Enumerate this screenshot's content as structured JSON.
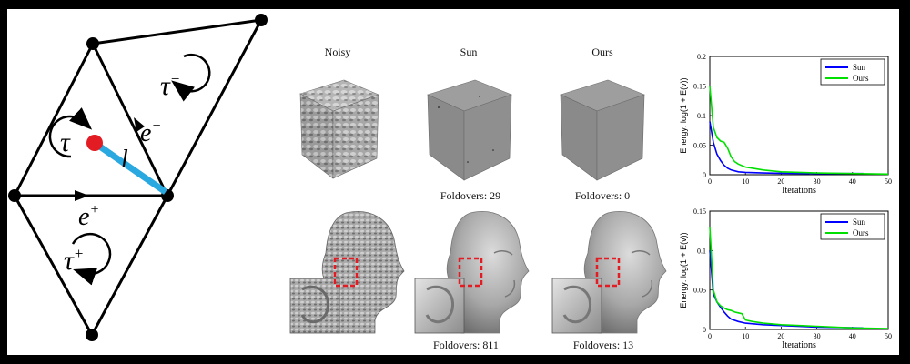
{
  "diagram": {
    "labels": {
      "tau_minus": "τ",
      "tau_minus_sup": "−",
      "tau": "τ",
      "tau_plus": "τ",
      "tau_plus_sup": "+",
      "e_minus": "e",
      "e_minus_sup": "−",
      "e_plus": "e",
      "e_plus_sup": "+",
      "l": "l"
    },
    "colors": {
      "edge_l": "#2aa9e0",
      "point": "#e31b23",
      "stroke": "#000000"
    }
  },
  "results": {
    "columns": [
      "Noisy",
      "Sun",
      "Ours"
    ],
    "cube_foldovers": {
      "sun": "Foldovers: 29",
      "ours": "Foldovers: 0"
    },
    "head_foldovers": {
      "sun": "Foldovers: 811",
      "ours": "Foldovers: 13"
    }
  },
  "chart_data": [
    {
      "type": "line",
      "title": "",
      "xlabel": "Iterations",
      "ylabel": "Energy:  log(1 + E(v))",
      "xlim": [
        0,
        50
      ],
      "ylim": [
        0,
        0.2
      ],
      "xticks": [
        "0",
        "10",
        "20",
        "30",
        "40",
        "50"
      ],
      "yticks": [
        "0",
        "0.05",
        "0.1",
        "0.15",
        "0.2"
      ],
      "grid": false,
      "legend": "top-right",
      "series": [
        {
          "name": "Sun",
          "color": "#0000ff",
          "x": [
            0,
            1,
            2,
            3,
            4,
            5,
            6,
            8,
            10,
            15,
            20,
            30,
            43
          ],
          "y": [
            0.09,
            0.055,
            0.035,
            0.024,
            0.016,
            0.011,
            0.008,
            0.005,
            0.004,
            0.003,
            0.0025,
            0.002,
            0.002
          ]
        },
        {
          "name": "Ours",
          "color": "#00e000",
          "x": [
            0,
            1,
            2,
            3,
            4,
            5,
            6,
            7,
            8,
            10,
            15,
            20,
            30,
            40,
            50
          ],
          "y": [
            0.15,
            0.08,
            0.063,
            0.057,
            0.055,
            0.045,
            0.03,
            0.022,
            0.018,
            0.013,
            0.008,
            0.005,
            0.003,
            0.002,
            0.001
          ]
        }
      ]
    },
    {
      "type": "line",
      "title": "",
      "xlabel": "Iterations",
      "ylabel": "Energy:  log(1 + E(v))",
      "xlim": [
        0,
        50
      ],
      "ylim": [
        0,
        0.15
      ],
      "xticks": [
        "0",
        "10",
        "20",
        "30",
        "40",
        "50"
      ],
      "yticks": [
        "0",
        "0.05",
        "0.1",
        "0.15"
      ],
      "grid": false,
      "legend": "top-right",
      "series": [
        {
          "name": "Sun",
          "color": "#0000ff",
          "x": [
            0,
            1,
            2,
            3,
            4,
            5,
            6,
            8,
            10,
            15,
            20,
            30,
            43
          ],
          "y": [
            0.1,
            0.045,
            0.035,
            0.028,
            0.022,
            0.017,
            0.013,
            0.01,
            0.008,
            0.006,
            0.005,
            0.003,
            0.002
          ]
        },
        {
          "name": "Ours",
          "color": "#00e000",
          "x": [
            0,
            1,
            2,
            3,
            4,
            5,
            6,
            7,
            8,
            9,
            10,
            12,
            15,
            20,
            30,
            40,
            50
          ],
          "y": [
            0.13,
            0.05,
            0.035,
            0.03,
            0.027,
            0.025,
            0.024,
            0.022,
            0.021,
            0.02,
            0.012,
            0.01,
            0.008,
            0.006,
            0.004,
            0.002,
            0.001
          ]
        }
      ]
    }
  ]
}
